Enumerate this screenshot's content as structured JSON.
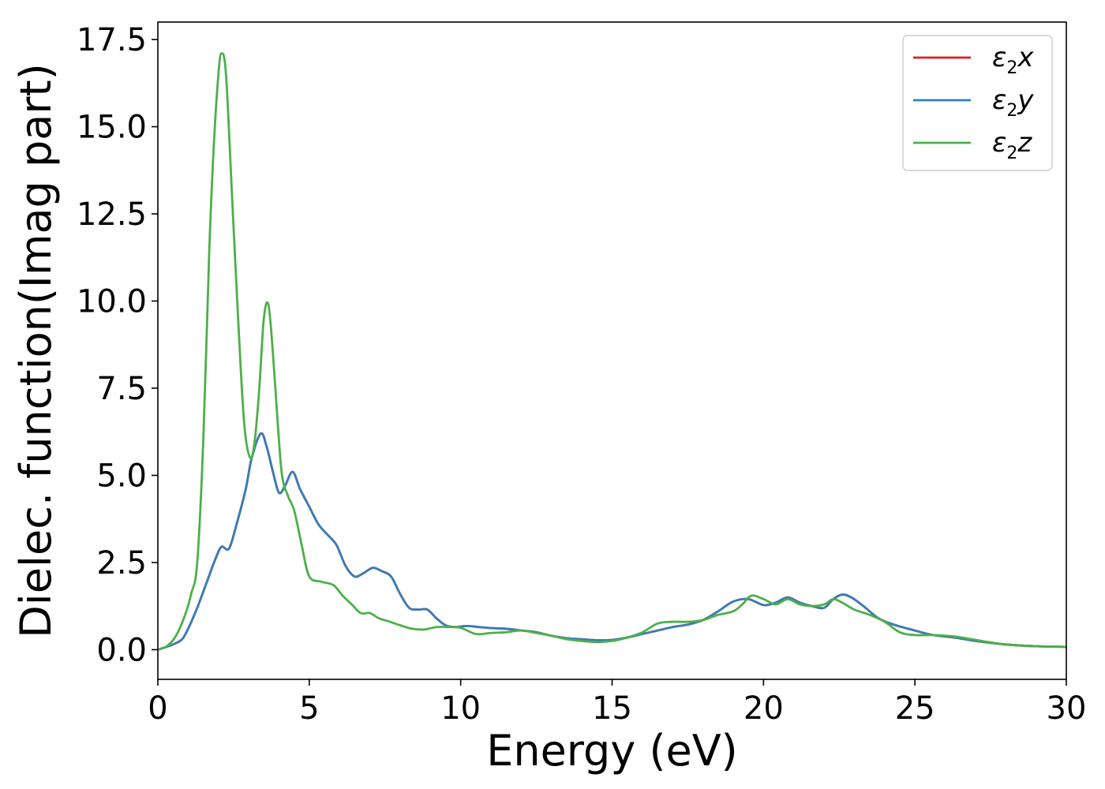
{
  "chart_data": {
    "type": "line",
    "title": "",
    "xlabel": "Energy (eV)",
    "ylabel": "Dielec. function(Imag part)",
    "xlim": [
      0,
      30
    ],
    "ylim": [
      -0.85,
      18.0
    ],
    "xticks": [
      0,
      5,
      10,
      15,
      20,
      25,
      30
    ],
    "xtick_labels": [
      "0",
      "5",
      "10",
      "15",
      "20",
      "25",
      "30"
    ],
    "yticks": [
      0,
      2.5,
      5,
      7.5,
      10,
      12.5,
      15,
      17.5
    ],
    "ytick_labels": [
      "0.0",
      "2.5",
      "5.0",
      "7.5",
      "10.0",
      "12.5",
      "15.0",
      "17.5"
    ],
    "grid": false,
    "legend_position": "top-right",
    "series": [
      {
        "name": "ε2x",
        "legend_main": "ε",
        "legend_sub": "2",
        "legend_var": "x",
        "color": "#e41a1c",
        "x": [
          0,
          0.5,
          0.8,
          1.0,
          1.3,
          1.6,
          1.9,
          2.1,
          2.35,
          2.6,
          2.9,
          3.1,
          3.4,
          3.6,
          3.8,
          4.0,
          4.2,
          4.45,
          4.7,
          5.0,
          5.3,
          5.6,
          5.9,
          6.2,
          6.5,
          6.8,
          7.1,
          7.4,
          7.7,
          8.0,
          8.3,
          8.6,
          8.9,
          9.2,
          9.5,
          9.8,
          10.2,
          10.6,
          11.0,
          11.5,
          12.0,
          12.5,
          13.0,
          13.5,
          14.0,
          14.5,
          15.0,
          15.5,
          16.0,
          16.5,
          17.0,
          17.5,
          18.0,
          18.5,
          19.0,
          19.5,
          20.0,
          20.4,
          20.8,
          21.2,
          21.6,
          22.0,
          22.3,
          22.6,
          22.9,
          23.3,
          23.8,
          24.3,
          25.0,
          25.6,
          26.3,
          27.0,
          28.0,
          29.0,
          30.0
        ],
        "values": [
          0.0,
          0.15,
          0.3,
          0.6,
          1.2,
          1.9,
          2.6,
          2.95,
          2.9,
          3.6,
          4.6,
          5.5,
          6.2,
          5.8,
          5.1,
          4.5,
          4.7,
          5.1,
          4.6,
          4.1,
          3.6,
          3.3,
          3.0,
          2.4,
          2.1,
          2.2,
          2.35,
          2.25,
          2.1,
          1.6,
          1.2,
          1.15,
          1.15,
          0.9,
          0.7,
          0.65,
          0.68,
          0.65,
          0.62,
          0.6,
          0.55,
          0.5,
          0.4,
          0.33,
          0.3,
          0.27,
          0.28,
          0.35,
          0.45,
          0.55,
          0.65,
          0.72,
          0.85,
          1.1,
          1.38,
          1.45,
          1.28,
          1.35,
          1.5,
          1.35,
          1.25,
          1.2,
          1.45,
          1.58,
          1.5,
          1.25,
          0.9,
          0.72,
          0.55,
          0.42,
          0.35,
          0.25,
          0.15,
          0.1,
          0.08
        ]
      },
      {
        "name": "ε2y",
        "legend_main": "ε",
        "legend_sub": "2",
        "legend_var": "y",
        "color": "#377eb8",
        "x": [
          0,
          0.5,
          0.8,
          1.0,
          1.3,
          1.6,
          1.9,
          2.1,
          2.35,
          2.6,
          2.9,
          3.1,
          3.4,
          3.6,
          3.8,
          4.0,
          4.2,
          4.45,
          4.7,
          5.0,
          5.3,
          5.6,
          5.9,
          6.2,
          6.5,
          6.8,
          7.1,
          7.4,
          7.7,
          8.0,
          8.3,
          8.6,
          8.9,
          9.2,
          9.5,
          9.8,
          10.2,
          10.6,
          11.0,
          11.5,
          12.0,
          12.5,
          13.0,
          13.5,
          14.0,
          14.5,
          15.0,
          15.5,
          16.0,
          16.5,
          17.0,
          17.5,
          18.0,
          18.5,
          19.0,
          19.5,
          20.0,
          20.4,
          20.8,
          21.2,
          21.6,
          22.0,
          22.3,
          22.6,
          22.9,
          23.3,
          23.8,
          24.3,
          25.0,
          25.6,
          26.3,
          27.0,
          28.0,
          29.0,
          30.0
        ],
        "values": [
          0.0,
          0.15,
          0.3,
          0.6,
          1.2,
          1.9,
          2.6,
          2.95,
          2.9,
          3.6,
          4.6,
          5.5,
          6.2,
          5.8,
          5.1,
          4.5,
          4.7,
          5.1,
          4.6,
          4.1,
          3.6,
          3.3,
          3.0,
          2.4,
          2.1,
          2.2,
          2.35,
          2.25,
          2.1,
          1.6,
          1.2,
          1.15,
          1.15,
          0.9,
          0.7,
          0.65,
          0.68,
          0.65,
          0.62,
          0.6,
          0.55,
          0.5,
          0.4,
          0.33,
          0.3,
          0.27,
          0.28,
          0.35,
          0.45,
          0.55,
          0.65,
          0.72,
          0.85,
          1.1,
          1.38,
          1.45,
          1.28,
          1.35,
          1.5,
          1.35,
          1.25,
          1.2,
          1.45,
          1.58,
          1.5,
          1.25,
          0.9,
          0.72,
          0.55,
          0.42,
          0.35,
          0.25,
          0.15,
          0.1,
          0.08
        ]
      },
      {
        "name": "ε2z",
        "legend_main": "ε",
        "legend_sub": "2",
        "legend_var": "z",
        "color": "#4daf4a",
        "x": [
          0,
          0.3,
          0.6,
          0.9,
          1.1,
          1.3,
          1.5,
          1.7,
          1.85,
          2.0,
          2.1,
          2.25,
          2.45,
          2.65,
          2.85,
          3.05,
          3.2,
          3.35,
          3.5,
          3.65,
          3.8,
          3.95,
          4.1,
          4.3,
          4.5,
          4.75,
          5.0,
          5.4,
          5.8,
          6.1,
          6.4,
          6.7,
          7.0,
          7.3,
          7.6,
          8.0,
          8.4,
          8.8,
          9.2,
          9.6,
          10.0,
          10.5,
          11.0,
          11.5,
          12.0,
          12.5,
          13.0,
          13.5,
          14.0,
          14.5,
          15.0,
          15.5,
          16.0,
          16.5,
          17.0,
          17.5,
          18.0,
          18.5,
          19.0,
          19.3,
          19.6,
          20.0,
          20.4,
          20.8,
          21.2,
          21.6,
          22.0,
          22.3,
          22.6,
          23.0,
          23.5,
          24.0,
          24.5,
          25.0,
          25.6,
          26.3,
          27.0,
          28.0,
          29.0,
          30.0
        ],
        "values": [
          0.0,
          0.1,
          0.4,
          1.0,
          1.6,
          2.5,
          6.0,
          11.5,
          14.5,
          16.5,
          17.1,
          16.5,
          13.0,
          9.5,
          6.5,
          5.5,
          6.0,
          7.5,
          9.5,
          9.9,
          8.5,
          6.6,
          5.0,
          4.4,
          4.0,
          3.0,
          2.1,
          1.95,
          1.85,
          1.55,
          1.3,
          1.05,
          1.05,
          0.9,
          0.82,
          0.7,
          0.6,
          0.58,
          0.65,
          0.65,
          0.63,
          0.45,
          0.48,
          0.5,
          0.55,
          0.48,
          0.4,
          0.3,
          0.25,
          0.22,
          0.25,
          0.35,
          0.5,
          0.75,
          0.8,
          0.8,
          0.85,
          1.0,
          1.1,
          1.3,
          1.55,
          1.45,
          1.3,
          1.45,
          1.3,
          1.25,
          1.3,
          1.45,
          1.35,
          1.15,
          1.0,
          0.8,
          0.5,
          0.42,
          0.42,
          0.38,
          0.28,
          0.15,
          0.1,
          0.08
        ]
      }
    ]
  }
}
